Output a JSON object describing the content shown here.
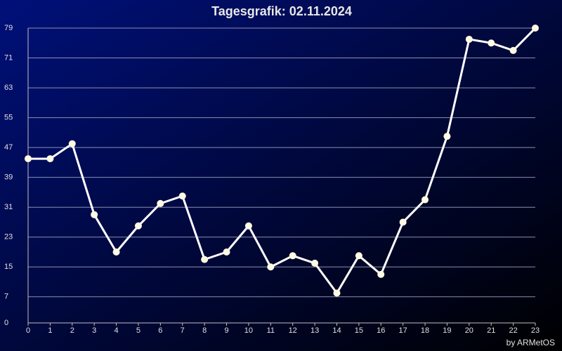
{
  "chart_data": {
    "type": "line",
    "title": "Tagesgrafik: 02.11.2024",
    "footer": "by ARMetOS",
    "x": [
      0,
      1,
      2,
      3,
      4,
      5,
      6,
      7,
      8,
      9,
      10,
      11,
      12,
      13,
      14,
      15,
      16,
      17,
      18,
      19,
      20,
      21,
      22,
      23
    ],
    "series": [
      {
        "color": "#ffffff",
        "values": [
          44,
          44,
          48,
          29,
          19,
          26,
          32,
          34,
          17,
          19,
          26,
          15,
          18,
          16,
          8,
          18,
          13,
          27,
          33,
          50,
          76,
          75,
          73,
          79
        ]
      }
    ],
    "xlim": [
      0,
      23
    ],
    "xticks": [
      0,
      1,
      2,
      3,
      4,
      5,
      6,
      7,
      8,
      9,
      10,
      11,
      12,
      13,
      14,
      15,
      16,
      17,
      18,
      19,
      20,
      21,
      22,
      23
    ],
    "ylim": [
      0,
      79
    ],
    "yticks": [
      0,
      7,
      15,
      23,
      31,
      39,
      47,
      55,
      63,
      71,
      79
    ],
    "grid": true
  }
}
